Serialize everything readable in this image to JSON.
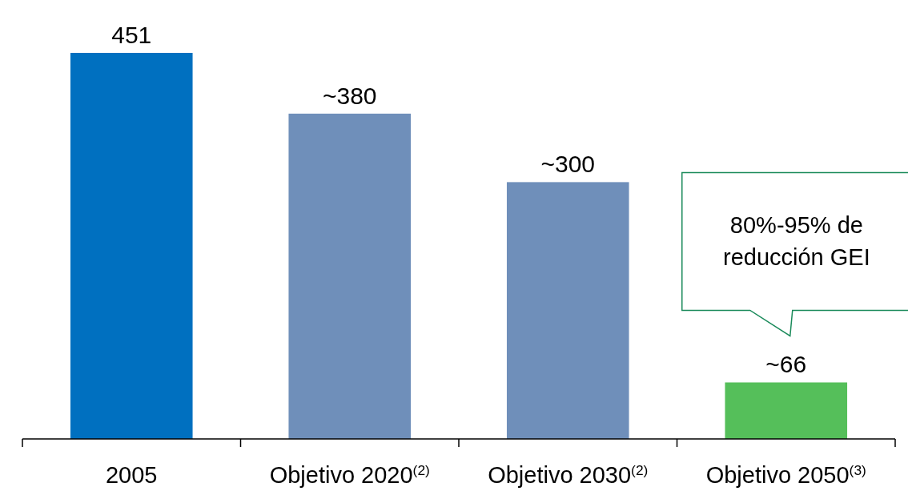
{
  "chart_data": {
    "type": "bar",
    "categories": [
      "2005",
      "Objetivo 2020$^{(2)}$",
      "Objetivo 2030$^{(2)}$",
      "Objetivo 2050$^{(3)}$"
    ],
    "values": [
      451,
      380,
      300,
      66
    ],
    "value_labels": [
      "451",
      "~380",
      "~300",
      "~66"
    ],
    "colors": [
      "#0070c0",
      "#6f8fba",
      "#6f8fba",
      "#55bf5a"
    ],
    "annotations": [
      "80%-95% de reducción GEI"
    ]
  }
}
